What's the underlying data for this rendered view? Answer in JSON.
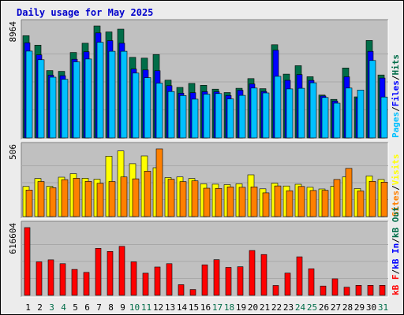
{
  "title": "Daily usage for May 2025",
  "chart_data": {
    "type": "bar",
    "title": "Daily usage for May 2025",
    "days": [
      "1",
      "2",
      "3",
      "4",
      "5",
      "6",
      "7",
      "8",
      "9",
      "10",
      "11",
      "12",
      "13",
      "14",
      "15",
      "16",
      "17",
      "18",
      "19",
      "20",
      "21",
      "22",
      "23",
      "24",
      "25",
      "26",
      "27",
      "28",
      "29",
      "30",
      "31"
    ],
    "weekend_days": [
      "3",
      "4",
      "10",
      "11",
      "17",
      "18",
      "24",
      "25",
      "31"
    ],
    "colors": {
      "hits": "#006d48",
      "files": "#0000ff",
      "pages": "#00c0ff",
      "visits": "#ffff00",
      "sites": "#ff8000",
      "kbytes": "#ff0000",
      "panel_bg": "#c0c0c0",
      "weekday_label": "#000000",
      "weekend_label": "#006d48"
    },
    "panels": [
      {
        "name": "requests",
        "ymax_label": "8964",
        "ylim": [
          0,
          8964
        ],
        "series": [
          {
            "name": "Hits",
            "key": "hits",
            "values": [
              8190,
              7430,
              5390,
              5330,
              6840,
              7580,
              8964,
              8490,
              8710,
              6450,
              6390,
              6680,
              4620,
              4040,
              4360,
              4210,
              3900,
              3630,
              3970,
              4750,
              3940,
              7460,
              5110,
              5780,
              4900,
              3430,
              3080,
              5600,
              3280,
              7800,
              5040
            ]
          },
          {
            "name": "Files",
            "key": "files",
            "values": [
              7610,
              6650,
              5020,
              4980,
              6300,
              6900,
              8410,
              7790,
              7580,
              5510,
              5440,
              5380,
              4180,
              3570,
              3620,
              3700,
              3690,
              3390,
              3810,
              4320,
              3710,
              7020,
              4610,
              5070,
              4600,
              3350,
              2950,
              4890,
              3200,
              6930,
              4790
            ]
          },
          {
            "name": "Pages",
            "key": "pages",
            "values": [
              6950,
              6260,
              4860,
              4690,
              6090,
              6320,
              7660,
              6940,
              6940,
              5190,
              4820,
              4380,
              3710,
              3390,
              3100,
              3500,
              3550,
              3120,
              3400,
              3990,
              3600,
              4930,
              3920,
              3970,
              4410,
              3230,
              2780,
              3990,
              3830,
              6200,
              3270
            ]
          }
        ],
        "right_labels": [
          {
            "text": "Pages",
            "key": "pages"
          },
          {
            "text": "Files",
            "key": "files"
          },
          {
            "text": "Hits",
            "key": "hits"
          }
        ]
      },
      {
        "name": "visitors",
        "ymax_label": "506",
        "ylim": [
          0,
          506
        ],
        "series": [
          {
            "name": "Visits",
            "key": "visits",
            "values": [
              225,
              284,
              226,
              294,
              320,
              286,
              279,
              451,
              490,
              395,
              453,
              365,
              291,
              296,
              284,
              244,
              242,
              238,
              245,
              312,
              207,
              249,
              228,
              241,
              219,
              206,
              226,
              296,
              209,
              303,
              277
            ]
          },
          {
            "name": "Sites",
            "key": "sites",
            "values": [
              198,
              262,
              216,
              276,
              286,
              263,
              249,
              262,
              296,
              282,
              339,
              506,
              279,
              261,
              267,
              212,
              210,
              222,
              219,
              222,
              177,
              229,
              193,
              225,
              195,
              196,
              277,
              360,
              191,
              263,
              257
            ]
          }
        ],
        "right_labels": [
          {
            "text": "Sites",
            "key": "sites"
          },
          {
            "text": "Visits",
            "key": "visits"
          }
        ]
      },
      {
        "name": "bandwidth",
        "ymax_label": "616604",
        "ylim": [
          0,
          616604
        ],
        "series": [
          {
            "name": "kB F",
            "key": "kbytes",
            "values": [
              616604,
              304700,
              323700,
              288400,
              235700,
              208900,
              428000,
              399200,
              446300,
              304500,
              201300,
              258000,
              288300,
              96600,
              52900,
              277500,
              325000,
              254400,
              260000,
              407700,
              371100,
              89800,
              202400,
              350800,
              241800,
              84500,
              150800,
              73500,
              90800,
              90800,
              90800
            ]
          }
        ],
        "right_labels": [
          {
            "text": "kB F",
            "key": "kbytes"
          },
          {
            "text": "kB In",
            "key": "files"
          },
          {
            "text": "kB Out",
            "key": "hits"
          }
        ]
      }
    ]
  }
}
